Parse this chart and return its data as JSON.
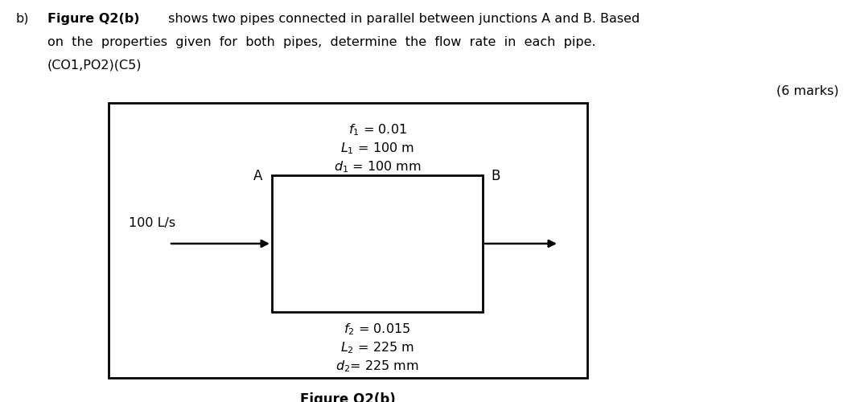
{
  "background_color": "#ffffff",
  "title_text": "Figure Q2(b)",
  "marks_text": "(6 marks)",
  "flow_label": "100 L/s",
  "junction_A": "A",
  "junction_B": "B",
  "pipe1_f": "$f_1$ = 0.01",
  "pipe1_L": "$L_1$ = 100 m",
  "pipe1_d": "$d_1$ = 100 mm",
  "pipe2_f": "$f_2$ = 0.015",
  "pipe2_L": "$L_2$ = 225 m",
  "pipe2_d": "$d_2$= 225 mm",
  "outer_box_color": "#000000",
  "inner_box_color": "#000000",
  "arrow_color": "#000000",
  "text_color": "#000000",
  "header_fontsize": 11.5,
  "label_fontsize": 11.5,
  "caption_fontsize": 12
}
